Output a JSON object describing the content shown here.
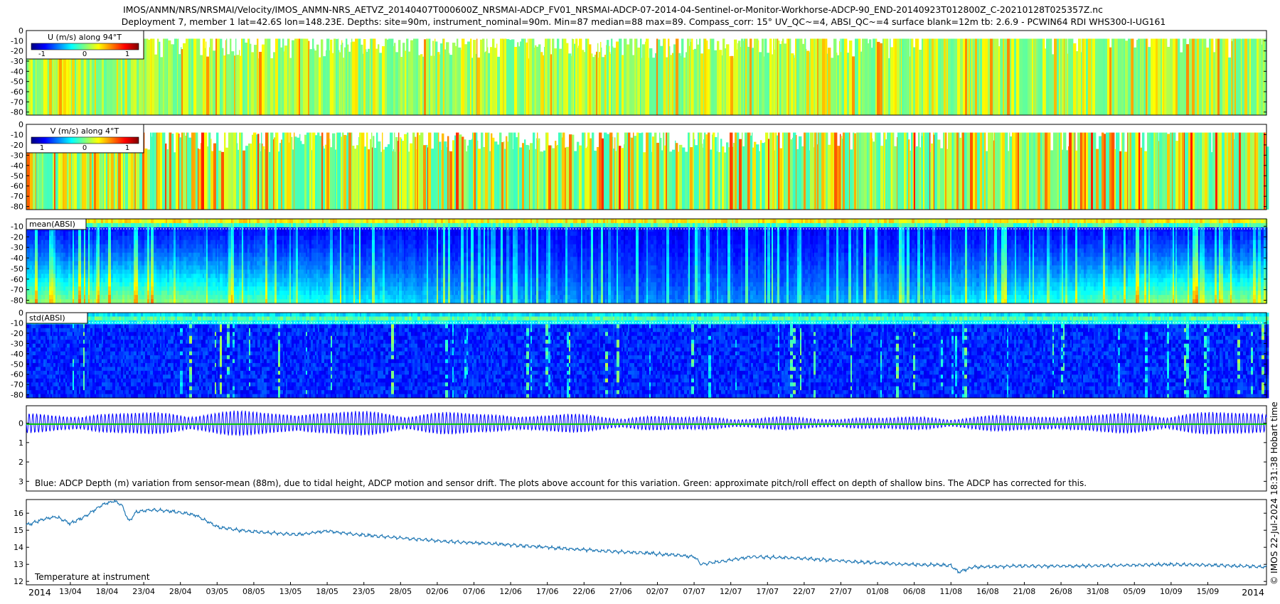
{
  "header": {
    "title_line1": "IMOS/ANMN/NRS/NRSMAI/Velocity/IMOS_ANMN-NRS_AETVZ_20140407T000600Z_NRSMAI-ADCP_FV01_NRSMAI-ADCP-07-2014-04-Sentinel-or-Monitor-Workhorse-ADCP-90_END-20140923T012800Z_C-20210128T025357Z.nc",
    "title_line2": "Deployment 7, member 1 lat=42.6S lon=148.23E. Depths: site=90m, instrument_nominal=90m. Min=87 median=88 max=89. Compass_corr: 15° UV_QC~=4, ABSI_QC~=4 surface blank=12m tb: 2.6.9 - PCWIN64 RDI WHS300-I-UG161"
  },
  "side_label": "© IMOS 22-Jul-2024 18:31:38 Hobart time",
  "colors": {
    "jet_stops": [
      "#00007f",
      "#0000ff",
      "#007fff",
      "#00ffff",
      "#7fff7f",
      "#ffff00",
      "#ff7f00",
      "#ff0000",
      "#7f0000"
    ],
    "depth_line": "#0000ff",
    "pitch_roll_line": "#00c800",
    "temperature_line": "#1f77b4",
    "frame": "#000000"
  },
  "chart_data": [
    {
      "type": "heatmap",
      "panel": "u-velocity",
      "legend_title": "U (m/s) along 94°T",
      "colorbar_ticks": [
        "-1",
        "0",
        "1"
      ],
      "clim": [
        -1.5,
        1.5
      ],
      "colormap": "jet",
      "y_ticks": [
        "0",
        "-10",
        "-20",
        "-30",
        "-40",
        "-50",
        "-60",
        "-70",
        "-80"
      ],
      "ylim": [
        -83,
        0
      ],
      "typical_value_range": [
        -0.1,
        0.5
      ],
      "blank_above_depth": -8
    },
    {
      "type": "heatmap",
      "panel": "v-velocity",
      "legend_title": "V (m/s) along 4°T",
      "colorbar_ticks": [
        "1",
        "0",
        "1"
      ],
      "clim": [
        -1.5,
        1.5
      ],
      "colormap": "jet",
      "y_ticks": [
        "0",
        "-10",
        "-20",
        "-30",
        "-40",
        "-50",
        "-60",
        "-70",
        "-80"
      ],
      "ylim": [
        -83,
        0
      ],
      "typical_value_range": [
        -0.2,
        0.8
      ],
      "blank_above_depth": -8
    },
    {
      "type": "heatmap",
      "panel": "mean-absi",
      "legend_title": "mean(ABSI)",
      "colormap": "jet",
      "y_ticks": [
        "-10",
        "-20",
        "-30",
        "-40",
        "-50",
        "-60",
        "-70",
        "-80"
      ],
      "ylim": [
        -83,
        -3
      ],
      "dotted_line_depth": -10
    },
    {
      "type": "heatmap",
      "panel": "std-absi",
      "legend_title": "std(ABSI)",
      "colormap": "jet",
      "y_ticks": [
        "0",
        "-10",
        "-20",
        "-30",
        "-40",
        "-50",
        "-60",
        "-70",
        "-80"
      ],
      "ylim": [
        -83,
        0
      ],
      "dotted_line_depth": -12
    },
    {
      "type": "line",
      "panel": "adcp-depth",
      "annotation": "Blue: ADCP Depth (m) variation from sensor-mean (88m), due to tidal height, ADCP motion and sensor drift. The plots above account for this variation. Green: approximate pitch/roll effect on depth of shallow bins. The ADCP has corrected for this.",
      "y_ticks": [
        "0",
        "1",
        "2",
        "3"
      ],
      "ylim": [
        3.5,
        -0.9
      ],
      "y_reversed": true,
      "series": [
        {
          "name": "Blue",
          "role": "depth-variation",
          "mean": 0.0,
          "tidal_amplitude_m": 0.55,
          "tidal_period_days": 0.517,
          "spring_neap_days": 14.8,
          "max_amplitude_m": 0.8
        },
        {
          "name": "Green",
          "role": "pitch-roll-effect",
          "value": 0.05
        }
      ]
    },
    {
      "type": "line",
      "panel": "temperature",
      "annotation": "Temperature at instrument",
      "y_ticks": [
        "12",
        "13",
        "14",
        "15",
        "16"
      ],
      "ylim": [
        11.8,
        16.8
      ],
      "series": [
        {
          "x": [
            "2014-04-07",
            "2014-04-09",
            "2014-04-11",
            "2014-04-13",
            "2014-04-15",
            "2014-04-17",
            "2014-04-18",
            "2014-04-19",
            "2014-04-20",
            "2014-04-21",
            "2014-04-22",
            "2014-04-24",
            "2014-04-27",
            "2014-04-30",
            "2014-05-03",
            "2014-05-06",
            "2014-05-10",
            "2014-05-14",
            "2014-05-18",
            "2014-05-22",
            "2014-05-28",
            "2014-06-03",
            "2014-06-10",
            "2014-06-17",
            "2014-06-24",
            "2014-07-01",
            "2014-07-07",
            "2014-07-08",
            "2014-07-15",
            "2014-07-22",
            "2014-07-29",
            "2014-08-05",
            "2014-08-11",
            "2014-08-12",
            "2014-08-14",
            "2014-08-21",
            "2014-08-28",
            "2014-09-04",
            "2014-09-10",
            "2014-09-16",
            "2014-09-20",
            "2014-09-23"
          ],
          "values": [
            15.3,
            15.6,
            15.8,
            15.4,
            15.8,
            16.4,
            16.6,
            16.7,
            16.5,
            15.5,
            16.1,
            16.2,
            16.1,
            15.9,
            15.2,
            15.0,
            14.85,
            14.75,
            14.95,
            14.75,
            14.55,
            14.35,
            14.2,
            14.0,
            13.8,
            13.65,
            13.45,
            13.0,
            13.45,
            13.35,
            13.15,
            13.0,
            12.95,
            12.55,
            12.85,
            12.9,
            12.9,
            12.95,
            13.0,
            12.95,
            12.9,
            12.85
          ]
        }
      ],
      "x_ticks": [
        "13/04",
        "18/04",
        "23/04",
        "28/04",
        "03/05",
        "08/05",
        "13/05",
        "18/05",
        "23/05",
        "28/05",
        "02/06",
        "07/06",
        "12/06",
        "17/06",
        "22/06",
        "27/06",
        "02/07",
        "07/07",
        "12/07",
        "17/07",
        "22/07",
        "27/07",
        "01/08",
        "06/08",
        "11/08",
        "16/08",
        "21/08",
        "26/08",
        "31/08",
        "05/09",
        "10/09",
        "15/09"
      ],
      "x_start_label": "2014",
      "x_end_label": "2014",
      "xlim": [
        "2014-04-07",
        "2014-09-23"
      ]
    }
  ]
}
